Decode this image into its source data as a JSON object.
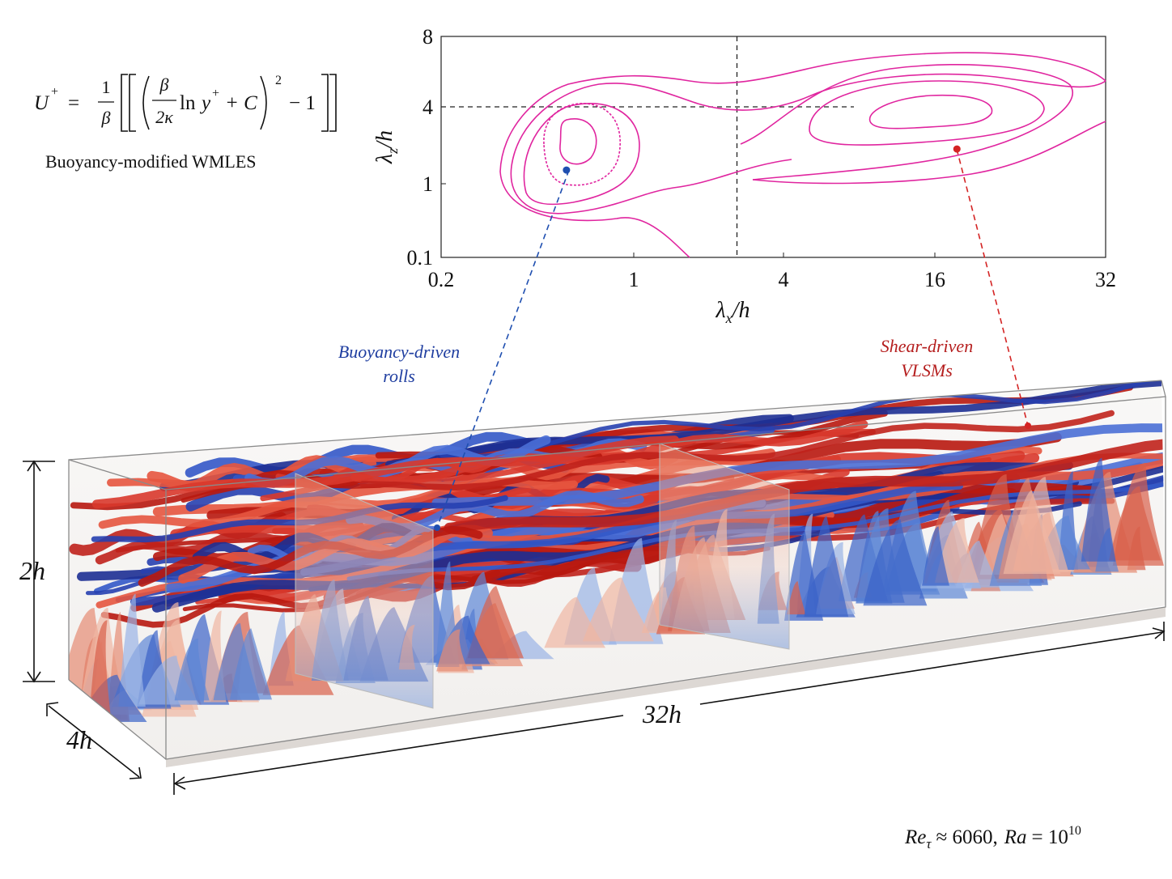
{
  "equation": {
    "lhs": "U",
    "lhs_sup": "+",
    "eq": "=",
    "frac1_num": "1",
    "frac1_den": "β",
    "frac2_num": "β",
    "frac2_den": "2κ",
    "ln": "ln",
    "y": "y",
    "y_sup": "+",
    "plus_c": "+ C",
    "power": "2",
    "minus_one": "− 1"
  },
  "caption": "Buoyancy-modified WMLES",
  "chart_data": {
    "type": "contour",
    "xlabel": {
      "symbol": "λ",
      "sub": "x",
      "rest": "/h"
    },
    "ylabel": {
      "symbol": "λ",
      "sub": "z",
      "rest": "/h"
    },
    "log_x": true,
    "log_y": true,
    "xlim": [
      0.2,
      32
    ],
    "xticks": [
      0.2,
      1,
      4,
      16,
      32
    ],
    "ylim": [
      0.1,
      8
    ],
    "yticks": [
      0.1,
      1,
      4,
      8
    ],
    "color": "#e0259f",
    "reference_lines": {
      "x": 2.6,
      "y": 4
    },
    "markers": [
      {
        "name": "Buoyancy-driven rolls",
        "x": 0.57,
        "y": 1.28,
        "color": "#1f4fb0"
      },
      {
        "name": "Shear-driven VLSMs",
        "x": 17.5,
        "y": 1.87,
        "color": "#d42424"
      }
    ]
  },
  "annotations": {
    "buoyancy": [
      "Buoyancy-driven",
      "rolls"
    ],
    "shear": [
      "Shear-driven",
      "VLSMs"
    ]
  },
  "dimensions": {
    "height": "2h",
    "width": "4h",
    "length": "32h"
  },
  "parameters": {
    "re": "Re",
    "re_sub": "τ",
    "re_value": "≈ 6060,",
    "ra": "Ra",
    "ra_eq": "= 10",
    "ra_exp": "10"
  }
}
